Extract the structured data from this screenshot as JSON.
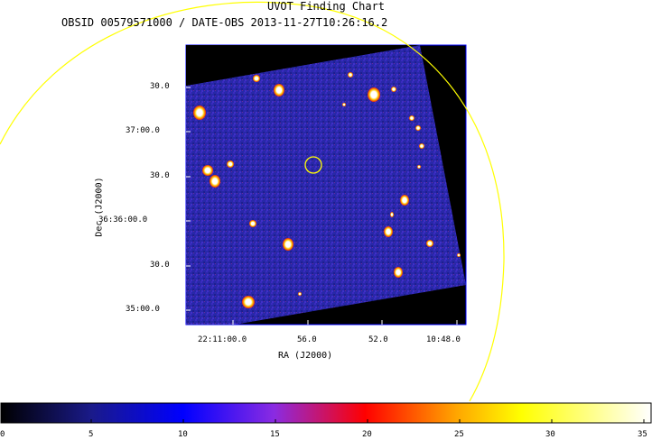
{
  "title": "UVOT Finding Chart",
  "subtitle": "OBSID 00579571000 / DATE-OBS 2013-11-27T10:26:16.2",
  "axes": {
    "ylabel": "Dec (J2000)",
    "xlabel": "RA (J2000)",
    "dec_ticks": [
      "30.0",
      "37:00.0",
      "30.0",
      "36:36:00.0",
      "30.0",
      "35:00.0"
    ],
    "ra_ticks": [
      "22:11:00.0",
      "56.0",
      "52.0",
      "10:48.0"
    ]
  },
  "colorbar": {
    "ticks": [
      "0",
      "5",
      "10",
      "15",
      "20",
      "25",
      "30",
      "35"
    ],
    "colors": [
      "#000000",
      "#1a1a8a",
      "#0000ff",
      "#8a2be2",
      "#ff0000",
      "#ffa500",
      "#ffff00",
      "#ffffff"
    ]
  },
  "overlay": {
    "ellipse_color": "#ffff00",
    "marker_color": "#ffff00"
  },
  "image": {
    "background_color": "#2a2aa0",
    "frame_color": "#0000ff"
  }
}
